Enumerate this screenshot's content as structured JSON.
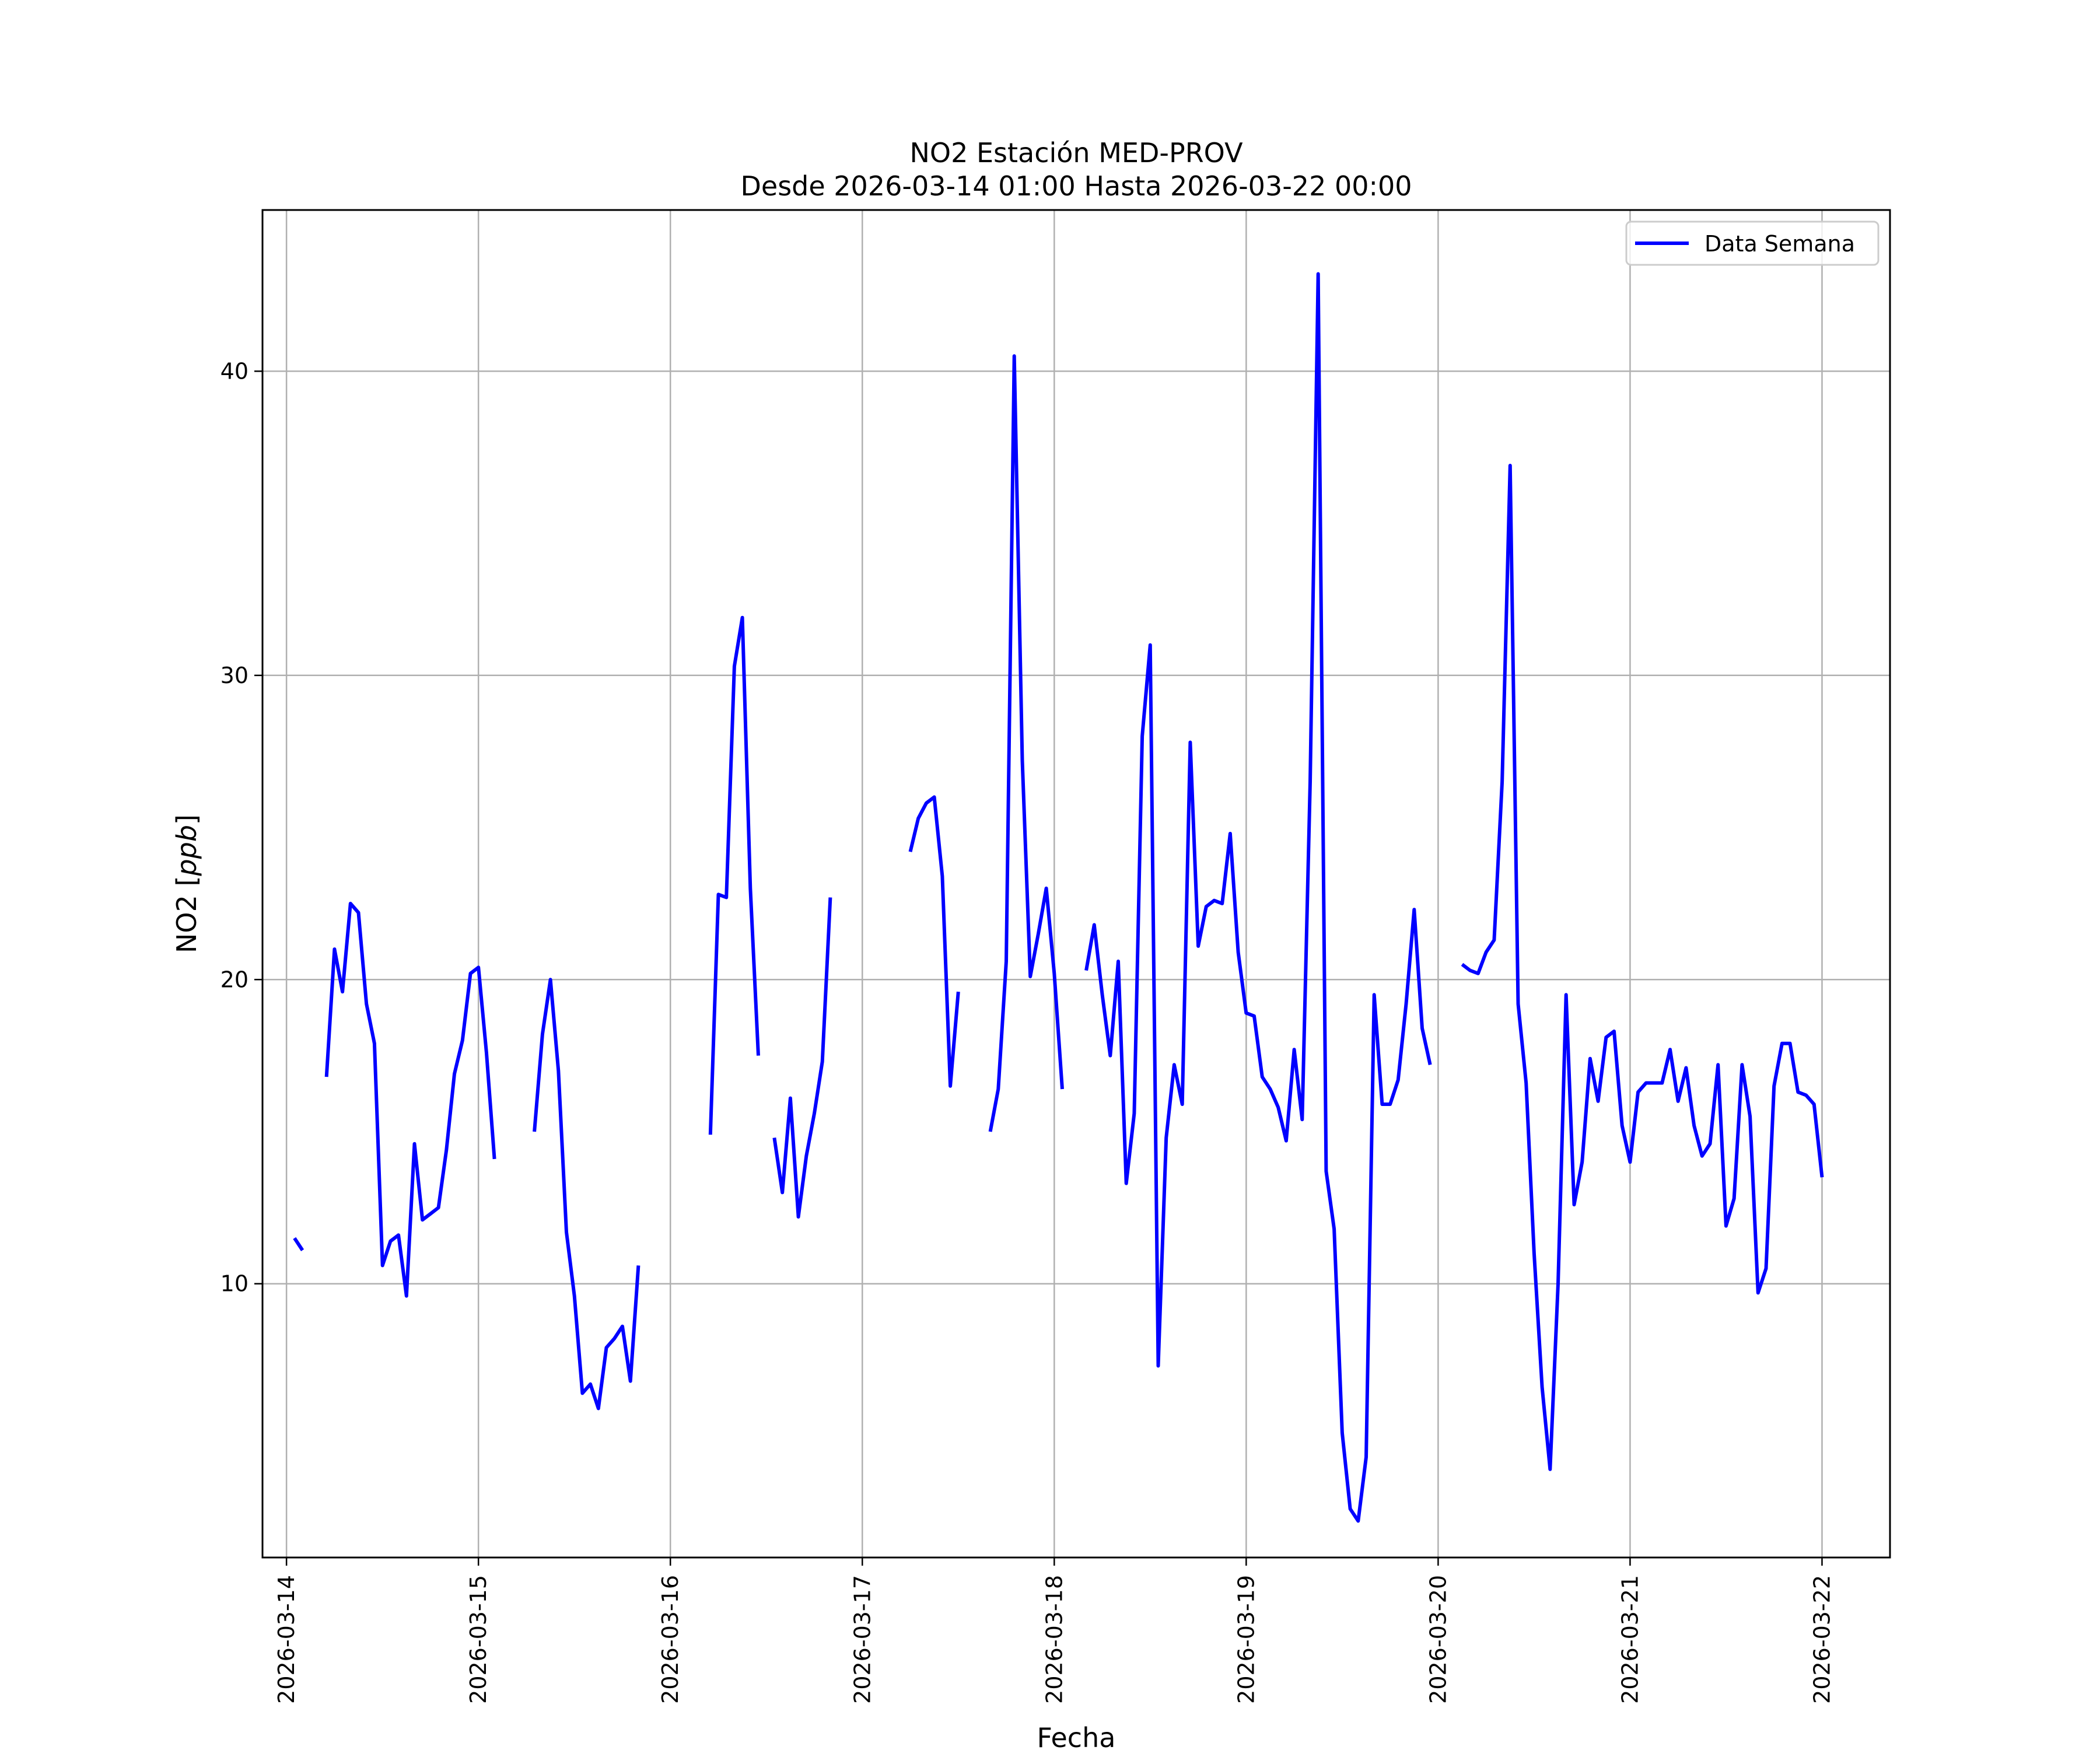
{
  "chart_data": {
    "type": "line",
    "title": "NO2 Estación MED-PROV",
    "subtitle": "Desde 2026-03-14 01:00 Hasta 2026-03-22 00:00",
    "xlabel": "Fecha",
    "ylabel_text": "NO2 [",
    "ylabel_unit": "ppb",
    "ylabel_close": "]",
    "xlim": [
      "2026-03-13 21:00",
      "2026-03-22 08:30"
    ],
    "ylim": [
      1.0,
      45.3
    ],
    "x_ticks": [
      "2026-03-14",
      "2026-03-15",
      "2026-03-16",
      "2026-03-17",
      "2026-03-18",
      "2026-03-19",
      "2026-03-20",
      "2026-03-21",
      "2026-03-22"
    ],
    "y_ticks": [
      10,
      20,
      30,
      40
    ],
    "grid": true,
    "legend_position": "top-right",
    "line_color": "#0000ff",
    "series": [
      {
        "name": "Data Semana",
        "segments": [
          {
            "start": "2026-03-14 01:00",
            "values": [
              11.5,
              11.1
            ]
          },
          {
            "start": "2026-03-14 05:00",
            "values": [
              16.8,
              21.0,
              19.6,
              22.5,
              22.2,
              19.2,
              17.9,
              10.6,
              11.4,
              11.6,
              9.6,
              14.6,
              12.1,
              12.3,
              12.5,
              14.4,
              16.9,
              18.0,
              20.2,
              20.4,
              17.6,
              14.1
            ]
          },
          {
            "start": "2026-03-15 07:00",
            "values": [
              15.0,
              18.2,
              20.0,
              17.0,
              11.7,
              9.6,
              6.4,
              6.7,
              5.9,
              7.9,
              8.2,
              8.6,
              6.8,
              10.6
            ]
          },
          {
            "start": "2026-03-16 05:00",
            "values": [
              14.9,
              22.8,
              22.7,
              30.3,
              31.9,
              23.0,
              17.5
            ]
          },
          {
            "start": "2026-03-16 13:00",
            "values": [
              14.8,
              13.0,
              16.1,
              12.2,
              14.2,
              15.6,
              17.3,
              22.7
            ]
          },
          {
            "start": "2026-03-17 06:00",
            "values": [
              24.2,
              25.3,
              25.8,
              26.0,
              23.4,
              16.5,
              19.6
            ]
          },
          {
            "start": "2026-03-17 16:00",
            "values": [
              15.0,
              16.4,
              20.6,
              40.5,
              27.2,
              20.1,
              21.5,
              23.0,
              20.2,
              16.4
            ]
          },
          {
            "start": "2026-03-18 04:00",
            "values": [
              20.3,
              21.8,
              19.5,
              17.5,
              20.6,
              13.3,
              15.6,
              28.0,
              31.0,
              7.3,
              14.8,
              17.2,
              15.9,
              27.8,
              21.1,
              22.4,
              22.6,
              22.5,
              24.8,
              20.9,
              18.9,
              18.8,
              16.8,
              16.4,
              15.8,
              14.7,
              17.7,
              15.4,
              26.5,
              43.2,
              13.7,
              11.8,
              5.1,
              2.6,
              2.2,
              4.3,
              19.5,
              15.9,
              15.9,
              16.7,
              19.2,
              22.3,
              18.4,
              17.2
            ]
          },
          {
            "start": "2026-03-20 03:00",
            "values": [
              20.5,
              20.3,
              20.2,
              20.9,
              21.3,
              26.5,
              36.9,
              19.2,
              16.6,
              11.0,
              6.6,
              3.9,
              10.0,
              19.5,
              12.6,
              14.0,
              17.4,
              16.0,
              18.1,
              18.3,
              15.2,
              14.0,
              16.3,
              16.6,
              16.6,
              16.6,
              17.7,
              16.0,
              17.1,
              15.2,
              14.2,
              14.6,
              17.2,
              11.9,
              12.8,
              17.2,
              15.5,
              9.7,
              10.5,
              16.5,
              17.9,
              17.9,
              16.3,
              16.2,
              15.9,
              13.5
            ]
          }
        ]
      }
    ]
  }
}
